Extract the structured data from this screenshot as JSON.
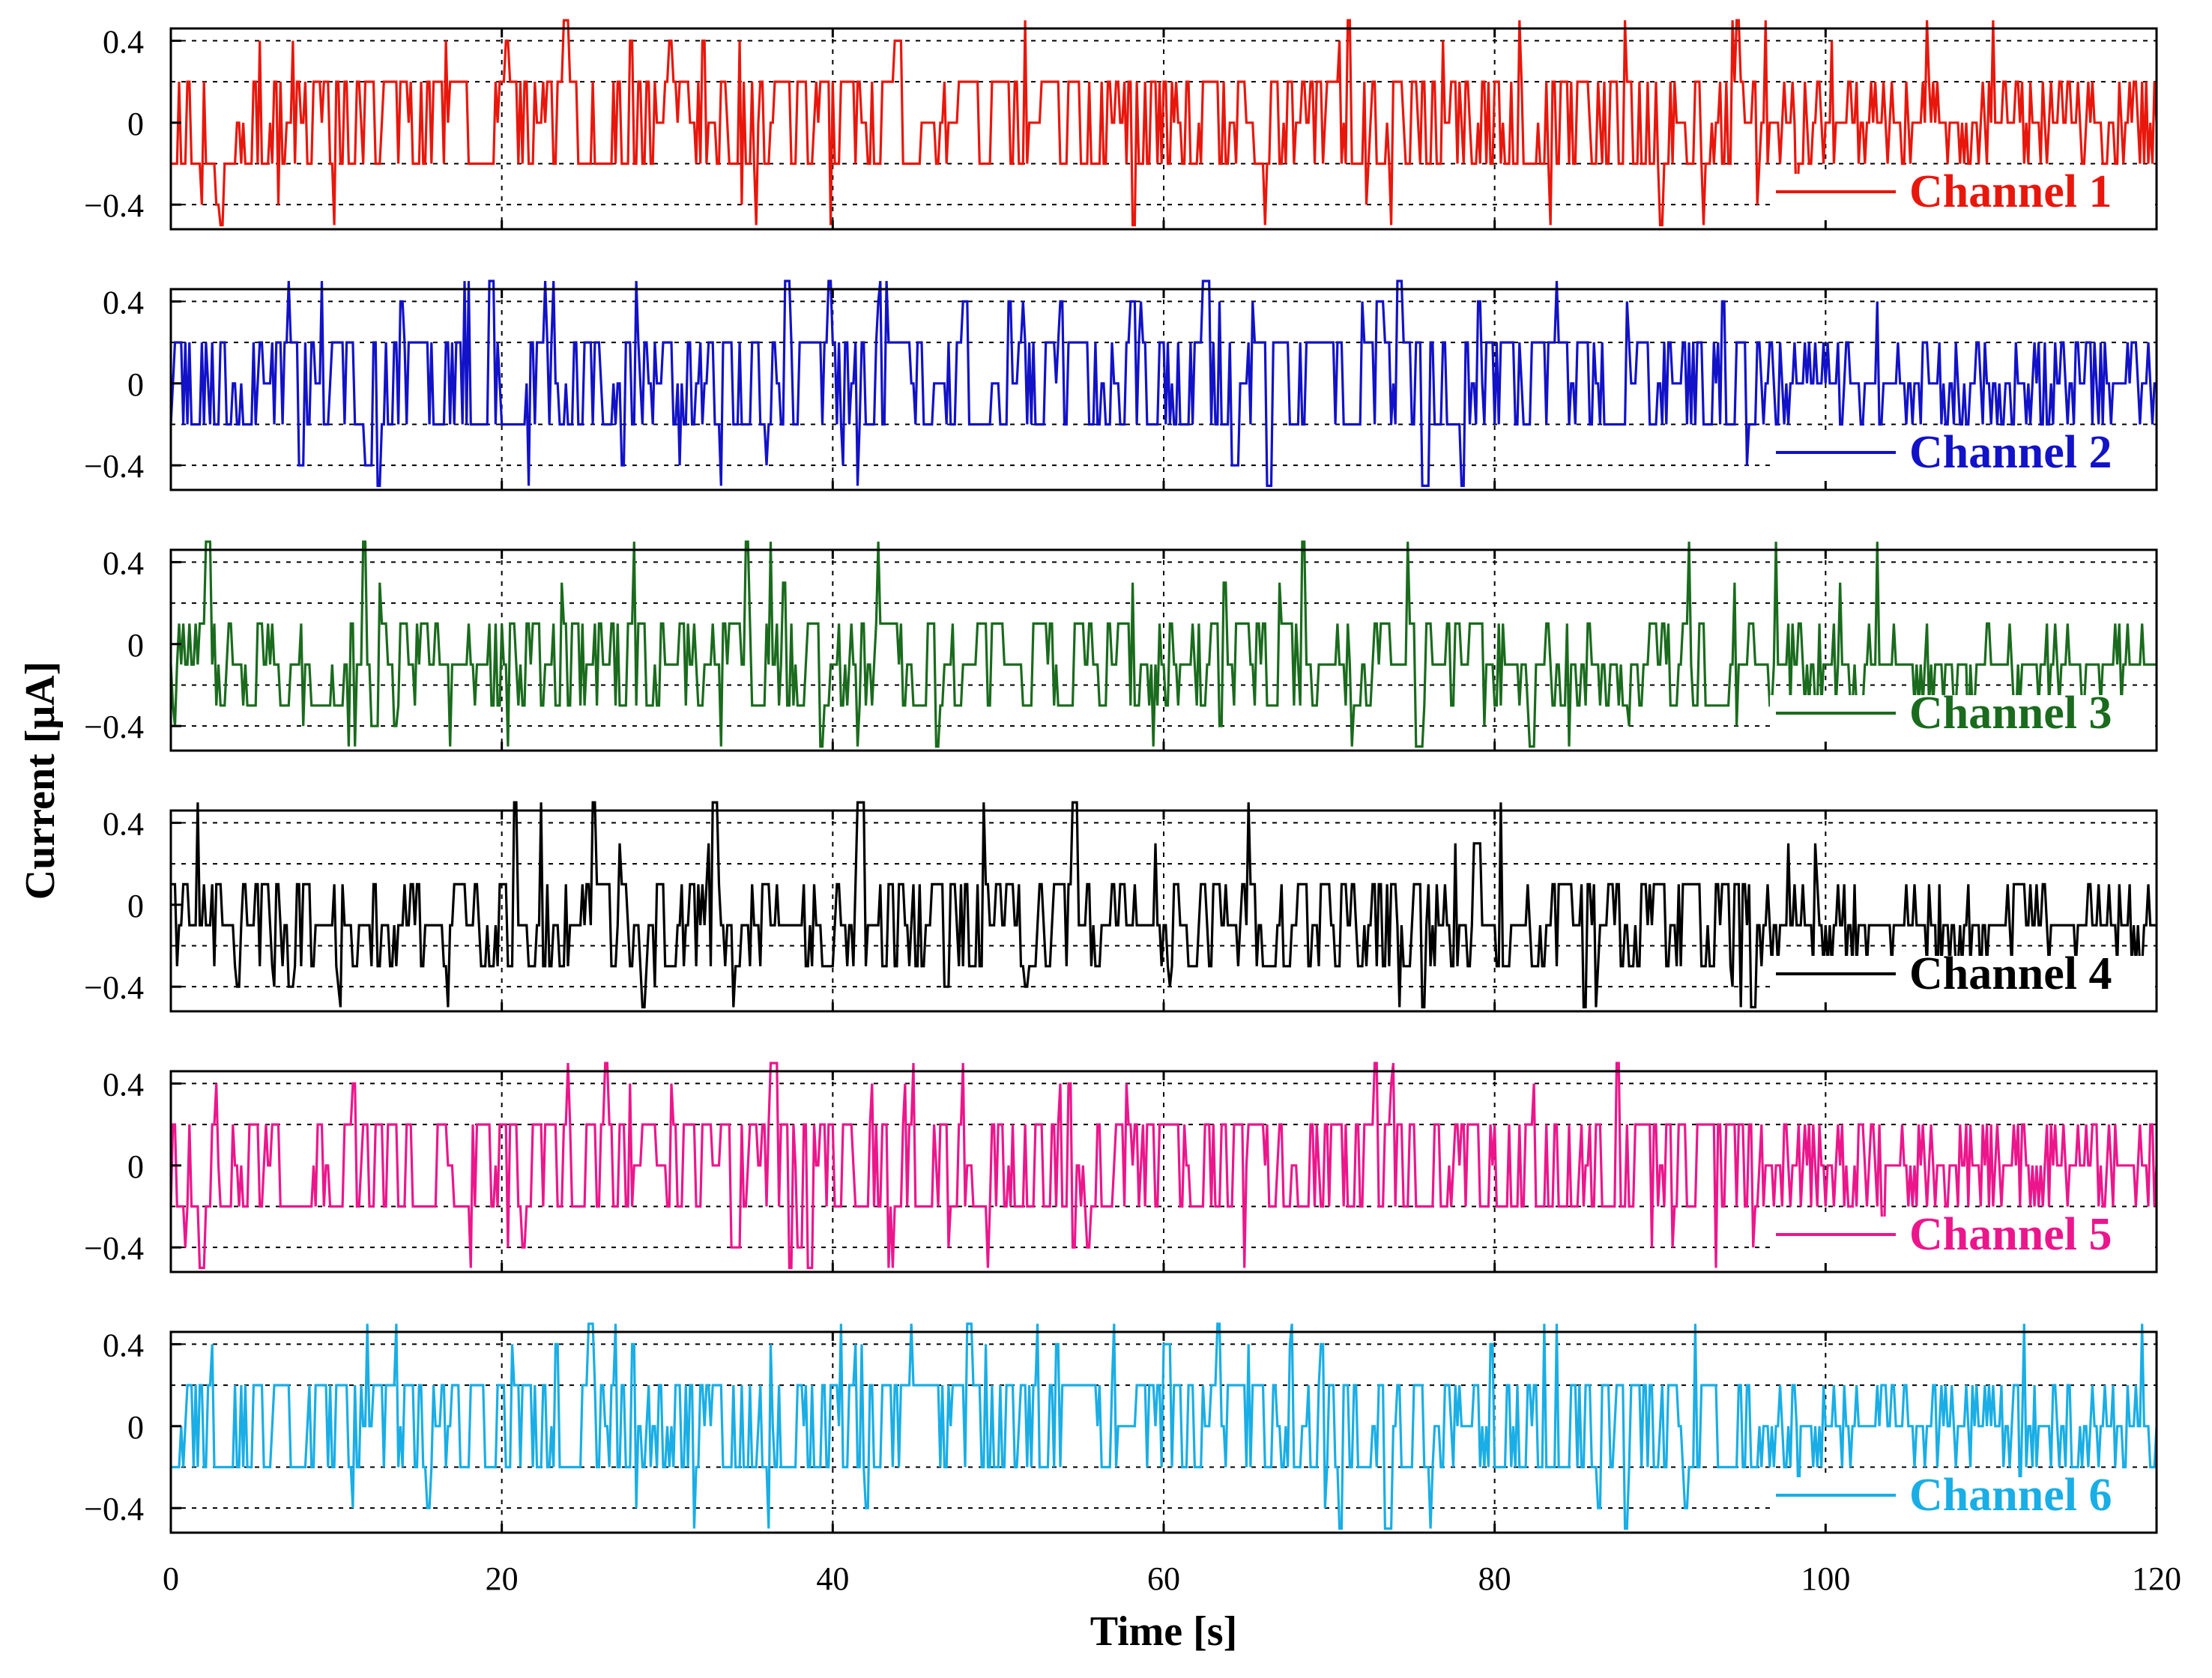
{
  "chart_data": {
    "type": "line",
    "layout": "six vertically stacked panels sharing one x axis",
    "xlabel": "Time [s]",
    "ylabel": "Current [μA]",
    "xlim": [
      0,
      120
    ],
    "ylim": [
      -0.52,
      0.46
    ],
    "x_ticks": [
      "0",
      "20",
      "40",
      "60",
      "80",
      "100",
      "120"
    ],
    "x_tick_values": [
      0,
      20,
      40,
      60,
      80,
      100,
      120
    ],
    "y_ticks": [
      "0.4",
      "0",
      "−0.4"
    ],
    "y_tick_values": [
      0.4,
      0,
      -0.4
    ],
    "y_grid_values": [
      0.4,
      0.2,
      -0.2,
      -0.4
    ],
    "grid": true,
    "legend_position": "lower-right of each panel",
    "sample_step_s": 0.125,
    "quantization_levels": [
      -0.5,
      -0.4,
      -0.3,
      -0.2,
      -0.1,
      0.0,
      0.1,
      0.2,
      0.3,
      0.4,
      0.5
    ],
    "series": [
      {
        "name": "Channel 1",
        "color": "#e8170c",
        "seed": 11,
        "base_levels": [
          -0.2,
          0.2
        ],
        "spike_levels": [
          -0.5,
          -0.4,
          0.4,
          0.5
        ],
        "rest_level": 0.0,
        "quiet_after_s": 96
      },
      {
        "name": "Channel 2",
        "color": "#1212c8",
        "seed": 23,
        "base_levels": [
          -0.2,
          0.2
        ],
        "spike_levels": [
          -0.5,
          -0.4,
          0.4,
          0.5
        ],
        "rest_level": 0.0,
        "quiet_after_s": 96
      },
      {
        "name": "Channel 3",
        "color": "#1a6b1d",
        "seed": 37,
        "base_levels": [
          -0.3,
          -0.1,
          0.1
        ],
        "spike_levels": [
          -0.5,
          -0.4,
          0.3,
          0.5
        ],
        "rest_level": -0.1,
        "quiet_after_s": 96
      },
      {
        "name": "Channel 4",
        "color": "#000000",
        "seed": 41,
        "base_levels": [
          -0.3,
          -0.1,
          0.1
        ],
        "spike_levels": [
          -0.5,
          -0.4,
          0.3,
          0.5
        ],
        "rest_level": -0.1,
        "quiet_after_s": 96
      },
      {
        "name": "Channel 5",
        "color": "#ec168c",
        "seed": 53,
        "base_levels": [
          -0.2,
          0.2
        ],
        "spike_levels": [
          -0.5,
          -0.4,
          0.4,
          0.5
        ],
        "rest_level": 0.0,
        "quiet_after_s": 96
      },
      {
        "name": "Channel 6",
        "color": "#19aee5",
        "seed": 67,
        "base_levels": [
          -0.2,
          0.2
        ],
        "spike_levels": [
          -0.5,
          -0.4,
          0.4,
          0.5
        ],
        "rest_level": 0.0,
        "quiet_after_s": 96
      }
    ]
  }
}
